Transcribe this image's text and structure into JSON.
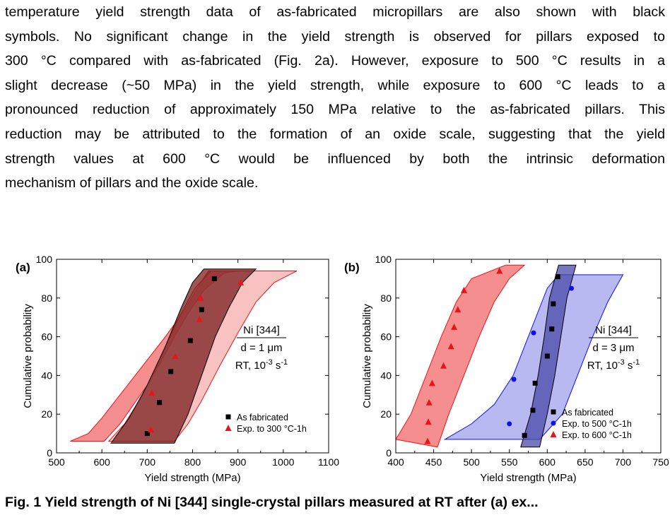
{
  "paragraph": {
    "lines": [
      "temperature yield strength data of as-fabricated micropillars are also shown with black",
      "symbols. No significant change in the yield strength is observed for pillars exposed to",
      "300 °C compared with as-fabricated (Fig. 2a). However, exposure to 500 °C results in a",
      "slight decrease (~50 MPa) in the yield strength, while exposure to 600 °C leads to a",
      "pronounced reduction of approximately 150 MPa relative to the as-fabricated pillars. This",
      "reduction may be attributed to the formation of an oxide scale, suggesting that the yield",
      "strength values at 600 °C would be influenced by both the intrinsic deformation",
      "mechanism of pillars and the oxide scale."
    ]
  },
  "caption": "Fig. 1 Yield strength of Ni [344] single-crystal pillars measured at RT after (a) ex...",
  "colors": {
    "black": "#000000",
    "red": "#e8141a",
    "blue": "#1010e6",
    "red_band": "#f26a6a",
    "blue_band": "#8a8ae8",
    "dark_band": "#7a1e1e",
    "gray_band": "#9a9a9a"
  },
  "chart_data": [
    {
      "panel_label": "(a)",
      "type": "scatter",
      "xlabel": "Yield strength (MPa)",
      "ylabel": "Cumulative probability",
      "xlim": [
        500,
        1100
      ],
      "ylim": [
        0,
        100
      ],
      "xticks": [
        "500",
        "600",
        "700",
        "800",
        "900",
        "1000",
        "1100"
      ],
      "yticks": [
        "0",
        "20",
        "40",
        "60",
        "80",
        "100"
      ],
      "annotation": {
        "material": "Ni [344]",
        "size": "d = 1 μm",
        "condition_prefix": "RT, 10",
        "condition_exp": "-3",
        "condition_suffix": " s",
        "condition_unit_exp": "-1"
      },
      "legend_position": "bottom-right",
      "series": [
        {
          "name": "As fabricated",
          "marker": "square",
          "color": "#000000",
          "points": [
            [
              700,
              10
            ],
            [
              727,
              26
            ],
            [
              752,
              42
            ],
            [
              795,
              58
            ],
            [
              820,
              74
            ],
            [
              848,
              90
            ]
          ]
        },
        {
          "name": "Exp. to 300 °C-1h",
          "marker": "triangle",
          "color": "#e8141a",
          "points": [
            [
              708,
              12
            ],
            [
              710,
              31
            ],
            [
              762,
              50
            ],
            [
              815,
              69
            ],
            [
              818,
              80
            ],
            [
              906,
              88
            ]
          ]
        }
      ],
      "bands": [
        {
          "color": "#f26a6a",
          "lower": [
            [
              605,
              6
            ],
            [
              640,
              15
            ],
            [
              670,
              25
            ],
            [
              700,
              35
            ],
            [
              730,
              47
            ],
            [
              760,
              60
            ],
            [
              790,
              72
            ],
            [
              825,
              84
            ],
            [
              870,
              93
            ],
            [
              905,
              94
            ]
          ],
          "upper": [
            [
              530,
              6
            ],
            [
              570,
              10
            ],
            [
              600,
              18
            ],
            [
              640,
              30
            ],
            [
              690,
              45
            ],
            [
              740,
              60
            ],
            [
              780,
              73
            ],
            [
              810,
              85
            ],
            [
              835,
              94
            ]
          ]
        },
        {
          "color": "#f59a9a",
          "lower": [
            [
              760,
              6
            ],
            [
              790,
              15
            ],
            [
              820,
              27
            ],
            [
              860,
              45
            ],
            [
              900,
              62
            ],
            [
              940,
              78
            ],
            [
              980,
              88
            ],
            [
              1030,
              94
            ]
          ],
          "upper": [
            [
              615,
              6
            ],
            [
              650,
              15
            ],
            [
              690,
              30
            ],
            [
              730,
              50
            ],
            [
              770,
              70
            ],
            [
              805,
              85
            ],
            [
              840,
              94
            ]
          ]
        },
        {
          "color": "#7a1e1e",
          "lower": [
            [
              620,
              5
            ],
            [
              660,
              18
            ],
            [
              700,
              35
            ],
            [
              740,
              55
            ],
            [
              775,
              75
            ],
            [
              800,
              88
            ],
            [
              825,
              95
            ]
          ],
          "upper": [
            [
              760,
              5
            ],
            [
              790,
              20
            ],
            [
              820,
              40
            ],
            [
              850,
              60
            ],
            [
              880,
              75
            ],
            [
              910,
              88
            ],
            [
              940,
              95
            ]
          ]
        }
      ]
    },
    {
      "panel_label": "(b)",
      "type": "scatter",
      "xlabel": "Yield strength (MPa)",
      "ylabel": "Cumulative probability",
      "xlim": [
        400,
        750
      ],
      "ylim": [
        0,
        100
      ],
      "xticks": [
        "400",
        "450",
        "500",
        "550",
        "600",
        "650",
        "700",
        "750"
      ],
      "yticks": [
        "0",
        "20",
        "40",
        "60",
        "80",
        "100"
      ],
      "annotation": {
        "material": "Ni [344]",
        "size": "d = 3 μm",
        "condition_prefix": "RT, 10",
        "condition_exp": "-3",
        "condition_suffix": " s",
        "condition_unit_exp": "-1"
      },
      "legend_position": "bottom-right",
      "series": [
        {
          "name": "As fabricated",
          "marker": "square",
          "color": "#000000",
          "points": [
            [
              570,
              9
            ],
            [
              581,
              22
            ],
            [
              584,
              36
            ],
            [
              600,
              50
            ],
            [
              606,
              64
            ],
            [
              608,
              77
            ],
            [
              614,
              91
            ]
          ]
        },
        {
          "name": "Exp. to 500 °C-1h",
          "marker": "circle",
          "color": "#1010e6",
          "points": [
            [
              550,
              15
            ],
            [
              556,
              38
            ],
            [
              582,
              62
            ],
            [
              632,
              85
            ]
          ]
        },
        {
          "name": "Exp. to 600 °C-1h",
          "marker": "triangle",
          "color": "#e8141a",
          "points": [
            [
              442,
              6
            ],
            [
              443,
              16
            ],
            [
              444,
              26
            ],
            [
              448,
              36
            ],
            [
              463,
              45
            ],
            [
              473,
              55
            ],
            [
              477,
              65
            ],
            [
              482,
              74
            ],
            [
              490,
              84
            ],
            [
              537,
              94
            ]
          ]
        }
      ],
      "bands": [
        {
          "color": "#f26a6a",
          "lower": [
            [
              400,
              7
            ],
            [
              420,
              20
            ],
            [
              440,
              40
            ],
            [
              460,
              60
            ],
            [
              480,
              78
            ],
            [
              500,
              90
            ],
            [
              545,
              97
            ]
          ],
          "upper": [
            [
              455,
              3
            ],
            [
              470,
              20
            ],
            [
              490,
              40
            ],
            [
              510,
              60
            ],
            [
              530,
              78
            ],
            [
              550,
              90
            ],
            [
              570,
              97
            ]
          ]
        },
        {
          "color": "#8a8ae8",
          "lower": [
            [
              465,
              7
            ],
            [
              500,
              15
            ],
            [
              530,
              25
            ],
            [
              555,
              40
            ],
            [
              575,
              60
            ],
            [
              590,
              75
            ],
            [
              600,
              85
            ],
            [
              615,
              92
            ]
          ],
          "upper": [
            [
              590,
              7
            ],
            [
              620,
              20
            ],
            [
              640,
              40
            ],
            [
              660,
              60
            ],
            [
              680,
              78
            ],
            [
              700,
              92
            ]
          ]
        },
        {
          "color": "#4a4aa8",
          "lower": [
            [
              565,
              3
            ],
            [
              578,
              20
            ],
            [
              588,
              40
            ],
            [
              596,
              60
            ],
            [
              603,
              80
            ],
            [
              615,
              97
            ]
          ],
          "upper": [
            [
              590,
              3
            ],
            [
              600,
              20
            ],
            [
              610,
              40
            ],
            [
              618,
              60
            ],
            [
              626,
              80
            ],
            [
              638,
              97
            ]
          ]
        }
      ]
    }
  ]
}
